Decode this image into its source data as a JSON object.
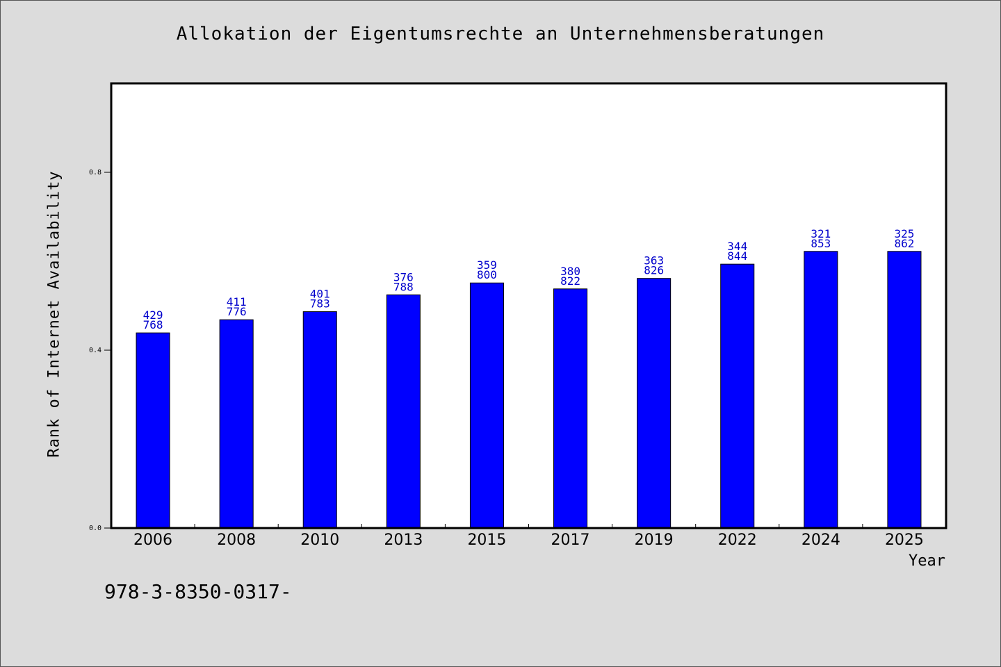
{
  "chart_data": {
    "type": "bar",
    "title": "Allokation der Eigentumsrechte an Unternehmensberatungen",
    "xlabel": "Year",
    "ylabel": "Rank of Internet Availability",
    "ylim": [
      0,
      1.0
    ],
    "yticks": [
      "0.0",
      "0.4",
      "0.8"
    ],
    "ytick_values": [
      0.0,
      0.4,
      0.8
    ],
    "categories": [
      "2006",
      "2008",
      "2010",
      "2013",
      "2015",
      "2017",
      "2019",
      "2022",
      "2024",
      "2025"
    ],
    "values": [
      0.4389,
      0.4685,
      0.4866,
      0.5245,
      0.5512,
      0.5378,
      0.5614,
      0.5935,
      0.6222,
      0.6222
    ],
    "labels": [
      "429\n768",
      "411\n776",
      "401\n783",
      "376\n788",
      "359\n800",
      "380\n822",
      "363\n826",
      "344\n844",
      "321\n853",
      "325\n862"
    ],
    "bar_color": "#0000ff",
    "label_color": "#0000cc",
    "grid": false
  },
  "footnote": "978-3-8350-0317-"
}
